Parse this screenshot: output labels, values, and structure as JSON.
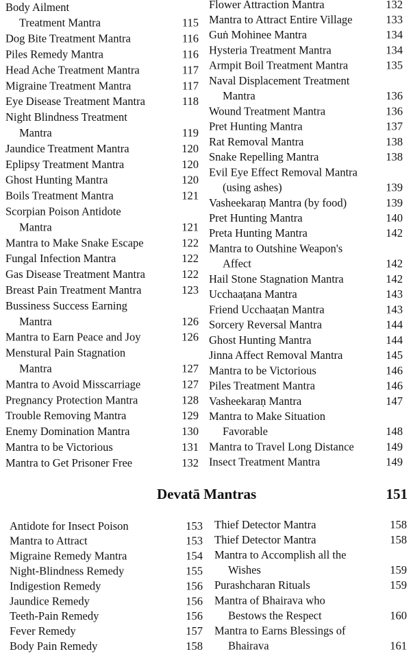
{
  "toc": {
    "columns": [
      {
        "entries": [
          {
            "lines": [
              "Body Ailment",
              "Treatment Mantra"
            ],
            "page": 115
          },
          {
            "lines": [
              "Dog Bite Treatment Mantra"
            ],
            "page": 116
          },
          {
            "lines": [
              "Piles Remedy Mantra"
            ],
            "page": 116
          },
          {
            "lines": [
              "Head Ache Treatment Mantra"
            ],
            "page": 117
          },
          {
            "lines": [
              "Migraine Treatment Mantra"
            ],
            "page": 117
          },
          {
            "lines": [
              "Eye Disease Treatment Mantra"
            ],
            "page": 118
          },
          {
            "lines": [
              "Night Blindness Treatment",
              "Mantra"
            ],
            "page": 119
          },
          {
            "lines": [
              "Jaundice Treatment Mantra"
            ],
            "page": 120
          },
          {
            "lines": [
              "Eplipsy Treatment Mantra"
            ],
            "page": 120
          },
          {
            "lines": [
              "Ghost Hunting Mantra"
            ],
            "page": 120
          },
          {
            "lines": [
              "Boils Treatment Mantra"
            ],
            "page": 121
          },
          {
            "lines": [
              "Scorpian Poison Antidote",
              "Mantra"
            ],
            "page": 121
          },
          {
            "lines": [
              "Mantra to Make Snake Escape"
            ],
            "page": 122
          },
          {
            "lines": [
              "Fungal Infection Mantra"
            ],
            "page": 122
          },
          {
            "lines": [
              "Gas Disease Treatment Mantra"
            ],
            "page": 122
          },
          {
            "lines": [
              "Breast Pain Treatment Mantra"
            ],
            "page": 123
          },
          {
            "lines": [
              "Bussiness Success Earning",
              "Mantra"
            ],
            "page": 126
          },
          {
            "lines": [
              "Mantra to Earn Peace and Joy"
            ],
            "page": 126
          },
          {
            "lines": [
              "Menstural Pain Stagnation",
              "Mantra"
            ],
            "page": 127
          },
          {
            "lines": [
              "Mantra to Avoid Misscarriage"
            ],
            "page": 127
          },
          {
            "lines": [
              "Pregnancy Protection Mantra"
            ],
            "page": 128
          },
          {
            "lines": [
              "Trouble Removing Mantra"
            ],
            "page": 129
          },
          {
            "lines": [
              "Enemy Domination Mantra"
            ],
            "page": 130
          },
          {
            "lines": [
              "Mantra to be Victorious"
            ],
            "page": 131
          },
          {
            "lines": [
              "Mantra to Get Prisoner Free"
            ],
            "page": 132
          }
        ]
      },
      {
        "entries": [
          {
            "lines": [
              "Flower Attraction Mantra"
            ],
            "page": 132
          },
          {
            "lines": [
              "Mantra to Attract Entire Village"
            ],
            "page": 133
          },
          {
            "lines": [
              "Guṅ Mohinee Mantra"
            ],
            "page": 134
          },
          {
            "lines": [
              "Hysteria Treatment Mantra"
            ],
            "page": 134
          },
          {
            "lines": [
              "Armpit Boil Treatment Mantra"
            ],
            "page": 135
          },
          {
            "lines": [
              "Naval Displacement Treatment",
              "Mantra"
            ],
            "page": 136
          },
          {
            "lines": [
              "Wound Treatment Mantra"
            ],
            "page": 136
          },
          {
            "lines": [
              "Pret Hunting Mantra"
            ],
            "page": 137
          },
          {
            "lines": [
              "Rat Removal Mantra"
            ],
            "page": 138
          },
          {
            "lines": [
              "Snake Repelling Mantra"
            ],
            "page": 138
          },
          {
            "lines": [
              "Evil Eye Effect Removal Mantra",
              "(using ashes)"
            ],
            "page": 139
          },
          {
            "lines": [
              "Vasheekaraṇ Mantra (by food)"
            ],
            "page": 139
          },
          {
            "lines": [
              "Pret Hunting Mantra"
            ],
            "page": 140
          },
          {
            "lines": [
              "Preta Hunting Mantra"
            ],
            "page": 142
          },
          {
            "lines": [
              "Mantra to Outshine Weapon's",
              "Affect"
            ],
            "page": 142
          },
          {
            "lines": [
              "Hail Stone Stagnation Mantra"
            ],
            "page": 142
          },
          {
            "lines": [
              "Ucchaaṭana Mantra"
            ],
            "page": 143
          },
          {
            "lines": [
              "Friend Ucchaaṭan Mantra"
            ],
            "page": 143
          },
          {
            "lines": [
              "Sorcery Reversal Mantra"
            ],
            "page": 144
          },
          {
            "lines": [
              "Ghost Hunting Mantra"
            ],
            "page": 144
          },
          {
            "lines": [
              "Jinna Affect Removal Mantra"
            ],
            "page": 145
          },
          {
            "lines": [
              "Mantra to be Victorious"
            ],
            "page": 146
          },
          {
            "lines": [
              "Piles Treatment Mantra"
            ],
            "page": 146
          },
          {
            "lines": [
              "Vasheekaraṇ Mantra"
            ],
            "page": 147
          },
          {
            "lines": [
              "Mantra to Make Situation",
              "Favorable"
            ],
            "page": 148
          },
          {
            "lines": [
              "Mantra to Travel Long Distance"
            ],
            "page": 149
          },
          {
            "lines": [
              "Insect Treatment Mantra"
            ],
            "page": 149
          }
        ]
      }
    ]
  },
  "section": {
    "title": "Devatā Mantras",
    "page": 151,
    "columns": [
      {
        "entries": [
          {
            "lines": [
              "Antidote for Insect Poison"
            ],
            "page": 153
          },
          {
            "lines": [
              "Mantra to Attract"
            ],
            "page": 153
          },
          {
            "lines": [
              "Migraine Remedy Mantra"
            ],
            "page": 154
          },
          {
            "lines": [
              "Night-Blindness Remedy"
            ],
            "page": 155
          },
          {
            "lines": [
              "Indigestion Remedy"
            ],
            "page": 156
          },
          {
            "lines": [
              "Jaundice Remedy"
            ],
            "page": 156
          },
          {
            "lines": [
              "Teeth-Pain Remedy"
            ],
            "page": 156
          },
          {
            "lines": [
              "Fever Remedy"
            ],
            "page": 157
          },
          {
            "lines": [
              "Body Pain Remedy"
            ],
            "page": 158
          }
        ]
      },
      {
        "entries": [
          {
            "lines": [
              "Thief Detector Mantra"
            ],
            "page": 158
          },
          {
            "lines": [
              "Thief Detector Mantra"
            ],
            "page": 158
          },
          {
            "lines": [
              "Mantra to Accomplish all the",
              "Wishes"
            ],
            "page": 159
          },
          {
            "lines": [
              "Purashcharan Rituals"
            ],
            "page": 159
          },
          {
            "lines": [
              "Mantra of Bhairava who",
              "Bestows the Respect"
            ],
            "page": 160
          },
          {
            "lines": [
              "Mantra to Earns Blessings of",
              "Bhairava"
            ],
            "page": 161
          }
        ]
      }
    ]
  }
}
